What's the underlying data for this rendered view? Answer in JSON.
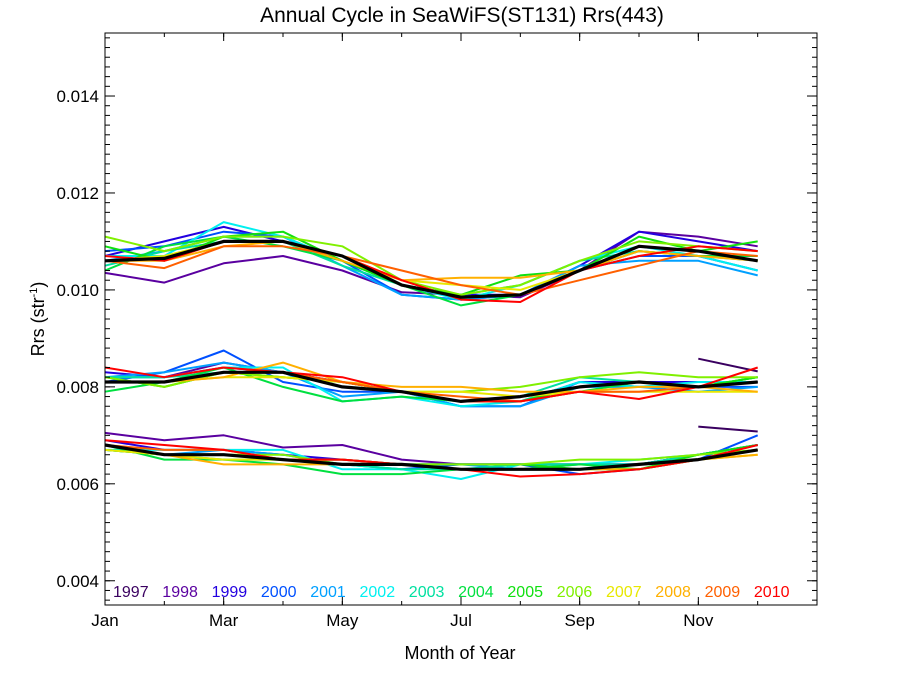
{
  "chart_data": {
    "type": "line",
    "title": "Annual Cycle in SeaWiFS(ST131) Rrs(443)",
    "xlabel": "Month of Year",
    "ylabel_main": "Rrs (str",
    "ylabel_sup": "-1",
    "ylabel_tail": ")",
    "xlim": [
      1,
      13
    ],
    "ylim": [
      0.0035,
      0.0153
    ],
    "x_ticks": [
      {
        "value": 1,
        "label": "Jan"
      },
      {
        "value": 3,
        "label": "Mar"
      },
      {
        "value": 5,
        "label": "May"
      },
      {
        "value": 7,
        "label": "Jul"
      },
      {
        "value": 9,
        "label": "Sep"
      },
      {
        "value": 11,
        "label": "Nov"
      }
    ],
    "y_ticks": [
      {
        "value": 0.004,
        "label": "0.004"
      },
      {
        "value": 0.006,
        "label": "0.006"
      },
      {
        "value": 0.008,
        "label": "0.008"
      },
      {
        "value": 0.01,
        "label": "0.010"
      },
      {
        "value": 0.012,
        "label": "0.012"
      },
      {
        "value": 0.014,
        "label": "0.014"
      }
    ],
    "x": [
      1,
      2,
      3,
      4,
      5,
      6,
      7,
      8,
      9,
      10,
      11,
      12
    ],
    "legend_position": "bottom-inside",
    "series": [
      {
        "name": "1997",
        "color": "#3a0060",
        "upper": [
          null,
          null,
          null,
          null,
          null,
          null,
          null,
          null,
          null,
          null,
          null,
          null
        ],
        "middle": [
          null,
          null,
          null,
          null,
          null,
          null,
          null,
          null,
          null,
          null,
          0.00858,
          0.00832
        ],
        "lower": [
          null,
          null,
          null,
          null,
          null,
          null,
          null,
          null,
          null,
          null,
          0.00718,
          0.00708
        ]
      },
      {
        "name": "1998",
        "color": "#5a00a0",
        "upper": [
          0.01035,
          0.01015,
          0.01055,
          0.0107,
          0.0104,
          0.00995,
          0.0099,
          0.00985,
          0.0104,
          0.0112,
          0.0111,
          0.0109
        ],
        "middle": [
          0.0082,
          0.0082,
          0.0085,
          0.0083,
          0.0081,
          0.0079,
          0.0077,
          0.0078,
          0.008,
          0.0081,
          0.0081,
          0.0081
        ],
        "lower": [
          0.00705,
          0.0069,
          0.007,
          0.00675,
          0.0068,
          0.0065,
          0.0064,
          0.0064,
          0.0064,
          0.0064,
          0.0066,
          0.0068
        ]
      },
      {
        "name": "1999",
        "color": "#2200e0",
        "upper": [
          0.0107,
          0.011,
          0.0113,
          0.011,
          0.0107,
          0.0101,
          0.0099,
          0.0099,
          0.0105,
          0.0112,
          0.011,
          0.0108
        ],
        "middle": [
          0.0083,
          0.0082,
          0.0084,
          0.0083,
          0.0081,
          0.0079,
          0.0077,
          0.0077,
          0.0081,
          0.0081,
          0.0081,
          0.0081
        ],
        "lower": [
          0.0069,
          0.0067,
          0.0067,
          0.0066,
          0.0065,
          0.0064,
          0.0064,
          0.0064,
          0.0064,
          0.0064,
          0.0066,
          0.0068
        ]
      },
      {
        "name": "2000",
        "color": "#0050ff",
        "upper": [
          0.0108,
          0.0109,
          0.0112,
          0.0111,
          0.0106,
          0.0099,
          0.0098,
          0.0099,
          0.0104,
          0.0107,
          0.0107,
          0.0104
        ],
        "middle": [
          0.0081,
          0.0083,
          0.00875,
          0.0081,
          0.0079,
          0.0079,
          0.0076,
          0.0076,
          0.0081,
          0.008,
          0.008,
          0.008
        ],
        "lower": [
          0.0068,
          0.0066,
          0.0066,
          0.0065,
          0.0064,
          0.0063,
          0.0064,
          0.0064,
          0.0062,
          0.0063,
          0.0065,
          0.007
        ]
      },
      {
        "name": "2001",
        "color": "#00a0ff",
        "upper": [
          0.0106,
          0.0108,
          0.0111,
          0.0111,
          0.0105,
          0.0099,
          0.0098,
          0.0099,
          0.0105,
          0.0106,
          0.0106,
          0.0103
        ],
        "middle": [
          0.0082,
          0.0083,
          0.0085,
          0.0083,
          0.0078,
          0.0079,
          0.0076,
          0.0076,
          0.008,
          0.008,
          0.0079,
          0.008
        ],
        "lower": [
          0.0067,
          0.0066,
          0.0067,
          0.0066,
          0.0064,
          0.0064,
          0.0064,
          0.0063,
          0.0064,
          0.0064,
          0.0066,
          0.0068
        ]
      },
      {
        "name": "2002",
        "color": "#00f0f0",
        "upper": [
          0.0107,
          0.0107,
          0.0114,
          0.0111,
          0.0106,
          0.0101,
          0.0098,
          0.0101,
          0.0106,
          0.0109,
          0.0107,
          0.0104
        ],
        "middle": [
          0.0082,
          0.0082,
          0.0084,
          0.0084,
          0.0077,
          0.0078,
          0.0076,
          0.0077,
          0.0081,
          0.008,
          0.0081,
          0.0081
        ],
        "lower": [
          0.0067,
          0.0067,
          0.0067,
          0.0067,
          0.0063,
          0.0063,
          0.0061,
          0.0064,
          0.0064,
          0.0065,
          0.0066,
          0.0068
        ]
      },
      {
        "name": "2003",
        "color": "#00e0a0",
        "upper": [
          0.0105,
          0.0108,
          0.011,
          0.011,
          0.0105,
          0.0101,
          0.0099,
          0.0101,
          0.0106,
          0.0108,
          0.0107,
          0.0106
        ],
        "middle": [
          0.0082,
          0.0082,
          0.0083,
          0.0083,
          0.008,
          0.0079,
          0.0077,
          0.0078,
          0.0082,
          0.0081,
          0.008,
          0.0082
        ],
        "lower": [
          0.0067,
          0.0066,
          0.0065,
          0.0065,
          0.0064,
          0.0063,
          0.0063,
          0.0064,
          0.0064,
          0.0064,
          0.0066,
          0.0068
        ]
      },
      {
        "name": "2004",
        "color": "#00e040",
        "upper": [
          0.0104,
          0.0109,
          0.0111,
          0.0109,
          0.0106,
          0.0101,
          0.00968,
          0.0099,
          0.0104,
          0.0108,
          0.0107,
          0.0107
        ],
        "middle": [
          0.0079,
          0.0081,
          0.0084,
          0.008,
          0.0077,
          0.0078,
          0.0077,
          0.0077,
          0.0079,
          0.0081,
          0.008,
          0.0082
        ],
        "lower": [
          0.0068,
          0.0065,
          0.0065,
          0.0064,
          0.0062,
          0.0062,
          0.0063,
          0.0063,
          0.0064,
          0.0063,
          0.0065,
          0.0067
        ]
      },
      {
        "name": "2005",
        "color": "#10e010",
        "upper": [
          0.0109,
          0.0106,
          0.0111,
          0.0112,
          0.0106,
          0.0101,
          0.0099,
          0.0103,
          0.0104,
          0.0111,
          0.0108,
          0.011
        ],
        "middle": [
          0.0082,
          0.008,
          0.0083,
          0.0082,
          0.0081,
          0.0079,
          0.0077,
          0.0077,
          0.008,
          0.0081,
          0.008,
          0.0082
        ],
        "lower": [
          0.0067,
          0.0066,
          0.0066,
          0.0065,
          0.0065,
          0.0064,
          0.0064,
          0.0064,
          0.0063,
          0.0063,
          0.0066,
          0.0068
        ]
      },
      {
        "name": "2006",
        "color": "#80f000",
        "upper": [
          0.0111,
          0.0108,
          0.0111,
          0.0111,
          0.0109,
          0.0102,
          0.0099,
          0.0101,
          0.0106,
          0.011,
          0.0109,
          0.0108
        ],
        "middle": [
          0.0082,
          0.008,
          0.0083,
          0.0082,
          0.0081,
          0.0079,
          0.0079,
          0.008,
          0.0082,
          0.0083,
          0.0082,
          0.0082
        ],
        "lower": [
          0.0068,
          0.0066,
          0.0066,
          0.0066,
          0.0064,
          0.0064,
          0.0064,
          0.0064,
          0.0065,
          0.0065,
          0.0066,
          0.0067
        ]
      },
      {
        "name": "2007",
        "color": "#e8e800",
        "upper": [
          0.0106,
          0.0107,
          0.011,
          0.011,
          0.0107,
          0.0102,
          0.0101,
          0.01,
          0.0104,
          0.0109,
          0.0108,
          0.0106
        ],
        "middle": [
          0.0081,
          0.0081,
          0.0082,
          0.0082,
          0.0081,
          0.0079,
          0.0079,
          0.0078,
          0.0079,
          0.0079,
          0.0079,
          0.0079
        ],
        "lower": [
          0.0067,
          0.0066,
          0.0065,
          0.0065,
          0.0064,
          0.0064,
          0.0063,
          0.0063,
          0.0063,
          0.0064,
          0.0065,
          0.0066
        ]
      },
      {
        "name": "2008",
        "color": "#ffb000",
        "upper": [
          0.0106,
          0.0106,
          0.0109,
          0.011,
          0.0106,
          0.0102,
          0.01025,
          0.01025,
          0.0104,
          0.0108,
          0.0107,
          0.0106
        ],
        "middle": [
          0.0081,
          0.0081,
          0.0082,
          0.0085,
          0.0081,
          0.008,
          0.008,
          0.0079,
          0.0079,
          0.008,
          0.008,
          0.0079
        ],
        "lower": [
          0.0068,
          0.0066,
          0.0064,
          0.0064,
          0.0064,
          0.0064,
          0.0063,
          0.0063,
          0.0063,
          0.0063,
          0.0065,
          0.0066
        ]
      },
      {
        "name": "2009",
        "color": "#ff6000",
        "upper": [
          0.0106,
          0.01045,
          0.0109,
          0.0109,
          0.0107,
          0.0104,
          0.0101,
          0.0099,
          0.0102,
          0.0105,
          0.0108,
          0.0107
        ],
        "middle": [
          0.0081,
          0.0081,
          0.0083,
          0.0083,
          0.0081,
          0.0079,
          0.0078,
          0.0077,
          0.0079,
          0.0079,
          0.008,
          0.0081
        ],
        "lower": [
          0.0068,
          0.0067,
          0.0067,
          0.0065,
          0.0065,
          0.0064,
          0.0063,
          0.0063,
          0.0063,
          0.0064,
          0.0065,
          0.0067
        ]
      },
      {
        "name": "2010",
        "color": "#ff0000",
        "upper": [
          0.0107,
          0.0106,
          0.011,
          0.011,
          0.0107,
          0.0102,
          0.0098,
          0.00975,
          0.0104,
          0.0107,
          0.0109,
          0.0108
        ],
        "middle": [
          0.0084,
          0.0082,
          0.0084,
          0.0083,
          0.0082,
          0.0079,
          0.0077,
          0.0077,
          0.0079,
          0.00775,
          0.008,
          0.0084
        ],
        "lower": [
          0.0069,
          0.0068,
          0.0067,
          0.0065,
          0.0065,
          0.0064,
          0.0063,
          0.00615,
          0.0062,
          0.0063,
          0.0065,
          0.0068
        ]
      }
    ],
    "mean_series": {
      "color": "#000000",
      "upper": [
        0.0106,
        0.01065,
        0.011,
        0.011,
        0.0107,
        0.0101,
        0.00985,
        0.0099,
        0.0104,
        0.0109,
        0.0108,
        0.0106
      ],
      "middle": [
        0.0081,
        0.0081,
        0.0083,
        0.0083,
        0.008,
        0.0079,
        0.0077,
        0.0078,
        0.008,
        0.0081,
        0.008,
        0.0081
      ],
      "lower": [
        0.0068,
        0.0066,
        0.0066,
        0.0065,
        0.0064,
        0.0064,
        0.0063,
        0.0063,
        0.0063,
        0.0064,
        0.0065,
        0.0067
      ]
    }
  }
}
